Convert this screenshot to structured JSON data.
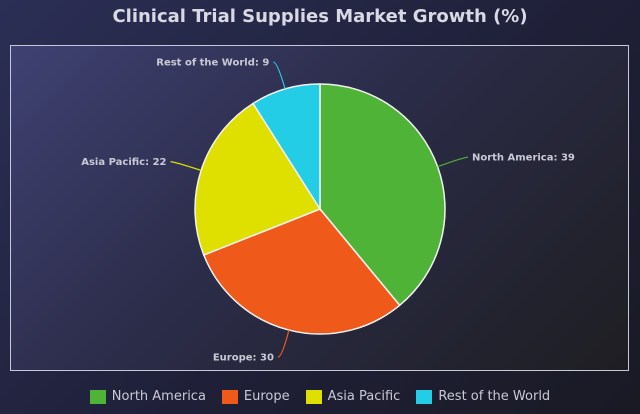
{
  "chart_data": {
    "type": "pie",
    "title": "Clinical Trial Supplies Market Growth (%)",
    "categories": [
      "North America",
      "Europe",
      "Asia Pacific",
      "Rest of the World"
    ],
    "values": [
      39,
      30,
      22,
      9
    ],
    "colors": [
      "#4fb337",
      "#ef5a1a",
      "#dfe000",
      "#24cde6"
    ],
    "legend_position": "bottom"
  }
}
